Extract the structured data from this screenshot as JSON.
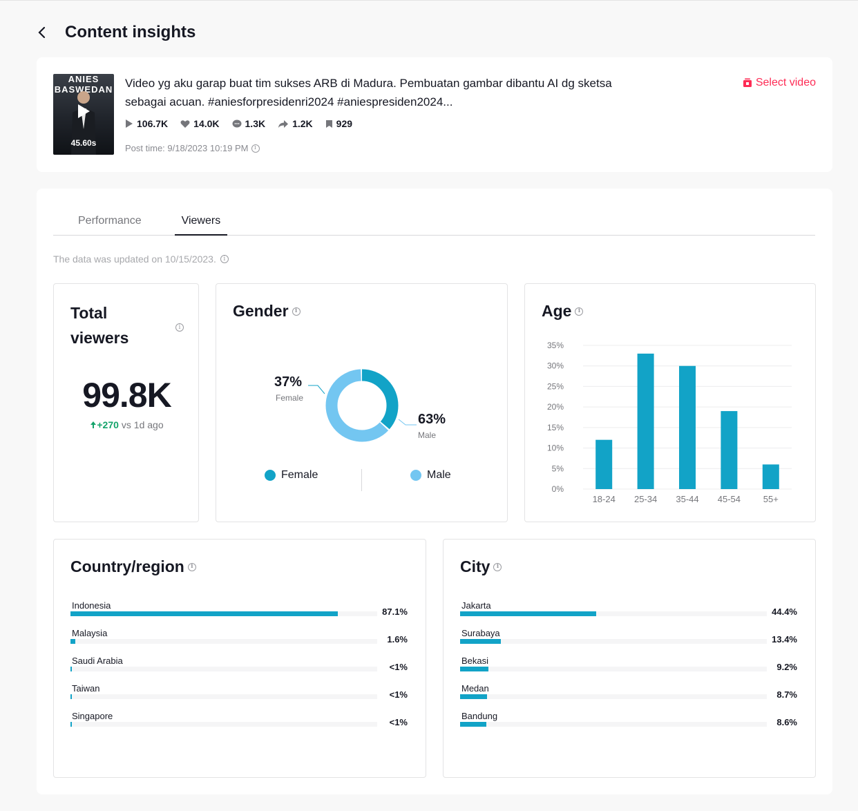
{
  "page": {
    "title": "Content insights"
  },
  "video": {
    "thumb_text": "ANIES BASWEDAN",
    "duration": "45.60s",
    "description": "Video yg aku garap buat tim sukses ARB di Madura. Pembuatan gambar dibantu AI dg sketsa sebagai acuan. #aniesforpresidenri2024 #aniespresiden2024...",
    "stats": {
      "views": "106.7K",
      "likes": "14.0K",
      "comments": "1.3K",
      "shares": "1.2K",
      "saves": "929"
    },
    "post_time": "Post time: 9/18/2023 10:19 PM",
    "select_label": "Select video"
  },
  "tabs": [
    "Performance",
    "Viewers"
  ],
  "updated": "The data was updated on 10/15/2023.",
  "total_viewers": {
    "title": "Total viewers",
    "value": "99.8K",
    "change": "+270",
    "change_suffix": "vs 1d ago"
  },
  "gender": {
    "title": "Gender",
    "female_pct": "37%",
    "female_label": "Female",
    "male_pct": "63%",
    "male_label": "Male",
    "legend_female": "Female",
    "legend_male": "Male",
    "colors": {
      "female": "#12a3c7",
      "male": "#73c6f1"
    }
  },
  "age": {
    "title": "Age"
  },
  "country": {
    "title": "Country/region",
    "rows": [
      {
        "name": "Indonesia",
        "value": "87.1%",
        "pct": 87.1
      },
      {
        "name": "Malaysia",
        "value": "1.6%",
        "pct": 1.6
      },
      {
        "name": "Saudi Arabia",
        "value": "<1%",
        "pct": 0.4
      },
      {
        "name": "Taiwan",
        "value": "<1%",
        "pct": 0.4
      },
      {
        "name": "Singapore",
        "value": "<1%",
        "pct": 0.3
      }
    ]
  },
  "city": {
    "title": "City",
    "rows": [
      {
        "name": "Jakarta",
        "value": "44.4%",
        "pct": 44.4
      },
      {
        "name": "Surabaya",
        "value": "13.4%",
        "pct": 13.4
      },
      {
        "name": "Bekasi",
        "value": "9.2%",
        "pct": 9.2
      },
      {
        "name": "Medan",
        "value": "8.7%",
        "pct": 8.7
      },
      {
        "name": "Bandung",
        "value": "8.6%",
        "pct": 8.6
      }
    ]
  },
  "chart_data": [
    {
      "type": "pie",
      "title": "Gender",
      "categories": [
        "Female",
        "Male"
      ],
      "values": [
        37,
        63
      ]
    },
    {
      "type": "bar",
      "title": "Age",
      "categories": [
        "18-24",
        "25-34",
        "35-44",
        "45-54",
        "55+"
      ],
      "values": [
        12,
        33,
        30,
        19,
        6
      ],
      "yticks": [
        "0%",
        "5%",
        "10%",
        "15%",
        "20%",
        "25%",
        "30%",
        "35%"
      ],
      "ylim": [
        0,
        35
      ],
      "color": "#12a3c7"
    }
  ]
}
